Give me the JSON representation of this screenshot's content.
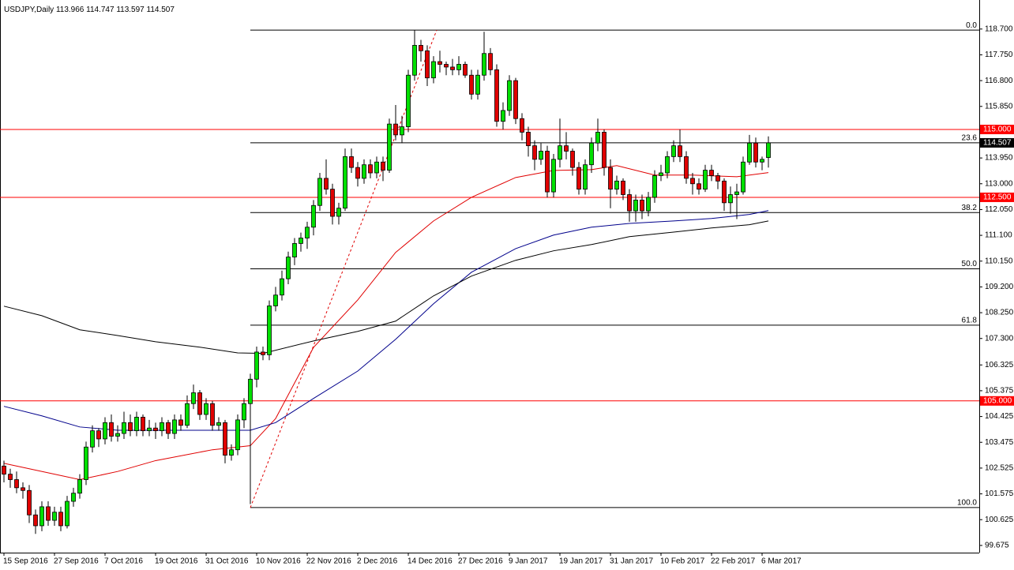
{
  "chart_data": {
    "type": "candlestick",
    "symbol": "USDJPY,Daily",
    "xlim": [
      -0.625,
      154.375
    ],
    "ylim": [
      99.41,
      119.77
    ],
    "xticks": [
      {
        "value": 0,
        "label": "15 Sep 2016"
      },
      {
        "value": 8,
        "label": "27 Sep 2016"
      },
      {
        "value": 16,
        "label": "7 Oct 2016"
      },
      {
        "value": 24,
        "label": "19 Oct 2016"
      },
      {
        "value": 32,
        "label": "31 Oct 2016"
      },
      {
        "value": 40,
        "label": "10 Nov 2016"
      },
      {
        "value": 48,
        "label": "22 Nov 2016"
      },
      {
        "value": 56,
        "label": "2 Dec 2016"
      },
      {
        "value": 64,
        "label": "14 Dec 2016"
      },
      {
        "value": 72,
        "label": "27 Dec 2016"
      },
      {
        "value": 80,
        "label": "9 Jan 2017"
      },
      {
        "value": 88,
        "label": "19 Jan 2017"
      },
      {
        "value": 96,
        "label": "31 Jan 2017"
      },
      {
        "value": 104,
        "label": "10 Feb 2017"
      },
      {
        "value": 112,
        "label": "22 Feb 2017"
      },
      {
        "value": 120,
        "label": "6 Mar 2017"
      }
    ],
    "yticks": [
      {
        "value": 118.7,
        "label": "118.700"
      },
      {
        "value": 117.75,
        "label": "117.750"
      },
      {
        "value": 116.8,
        "label": "116.800"
      },
      {
        "value": 115.85,
        "label": "115.850"
      },
      {
        "value": 113.95,
        "label": "113.950"
      },
      {
        "value": 113,
        "label": "113.000"
      },
      {
        "value": 112.05,
        "label": "112.050"
      },
      {
        "value": 111.1,
        "label": "111.100"
      },
      {
        "value": 110.15,
        "label": "110.150"
      },
      {
        "value": 109.2,
        "label": "109.200"
      },
      {
        "value": 108.25,
        "label": "108.250"
      },
      {
        "value": 107.3,
        "label": "107.300"
      },
      {
        "value": 106.325,
        "label": "106.325"
      },
      {
        "value": 105.375,
        "label": "105.375"
      },
      {
        "value": 104.425,
        "label": "104.425"
      },
      {
        "value": 103.475,
        "label": "103.475"
      },
      {
        "value": 102.525,
        "label": "102.525"
      },
      {
        "value": 101.575,
        "label": "101.575"
      },
      {
        "value": 100.625,
        "label": "100.625"
      },
      {
        "value": 99.675,
        "label": "99.675"
      }
    ],
    "levels": [
      {
        "value": 115,
        "label": "115.000"
      },
      {
        "value": 112.5,
        "label": "112.500"
      },
      {
        "value": 105,
        "label": "105.000"
      }
    ],
    "level_color": "#ff0000",
    "last_price": 114.507,
    "fib": {
      "x": 39,
      "trend_x": [
        39,
        68.5
      ],
      "trend_y": [
        101.07,
        118.66
      ],
      "lines": [
        {
          "value": 118.66,
          "label": "0.0"
        },
        {
          "value": 114.51,
          "label": "23.6"
        },
        {
          "value": 111.94,
          "label": "38.2"
        },
        {
          "value": 109.865,
          "label": "50.0"
        },
        {
          "value": 107.79,
          "label": "61.8"
        },
        {
          "value": 101.07,
          "label": "100.0"
        }
      ]
    },
    "up_color": "#00e000",
    "down_color": "#e00000",
    "candles": [
      [
        102.6,
        102.8,
        102.0,
        102.3
      ],
      [
        102.3,
        102.5,
        101.8,
        102.1
      ],
      [
        102.1,
        102.4,
        101.6,
        101.8
      ],
      [
        101.8,
        102.0,
        101.4,
        101.7
      ],
      [
        101.7,
        101.9,
        100.5,
        100.8
      ],
      [
        100.8,
        101.0,
        100.1,
        100.4
      ],
      [
        100.4,
        101.3,
        100.2,
        101.1
      ],
      [
        101.1,
        101.3,
        100.4,
        100.6
      ],
      [
        100.6,
        101.1,
        100.4,
        100.9
      ],
      [
        100.9,
        101.1,
        100.2,
        100.4
      ],
      [
        100.4,
        101.5,
        100.3,
        101.3
      ],
      [
        101.3,
        101.8,
        101.1,
        101.6
      ],
      [
        101.6,
        102.3,
        101.4,
        102.1
      ],
      [
        102.1,
        103.5,
        101.9,
        103.3
      ],
      [
        103.3,
        104.1,
        103.1,
        103.9
      ],
      [
        103.9,
        104.0,
        103.3,
        103.6
      ],
      [
        103.6,
        104.4,
        103.4,
        104.2
      ],
      [
        104.2,
        104.5,
        103.5,
        103.7
      ],
      [
        103.7,
        104.1,
        103.5,
        103.8
      ],
      [
        103.8,
        104.6,
        103.6,
        104.2
      ],
      [
        104.2,
        104.5,
        103.7,
        103.9
      ],
      [
        103.9,
        104.6,
        103.7,
        104.4
      ],
      [
        104.4,
        104.5,
        103.7,
        103.9
      ],
      [
        103.9,
        104.3,
        103.7,
        104.0
      ],
      [
        104.0,
        104.2,
        103.6,
        103.9
      ],
      [
        103.9,
        104.4,
        103.7,
        104.2
      ],
      [
        104.2,
        104.3,
        103.6,
        103.8
      ],
      [
        103.8,
        104.5,
        103.6,
        104.3
      ],
      [
        104.3,
        104.5,
        103.9,
        104.1
      ],
      [
        104.1,
        105.2,
        104.0,
        104.9
      ],
      [
        104.9,
        105.6,
        104.7,
        105.3
      ],
      [
        105.3,
        105.4,
        104.3,
        104.5
      ],
      [
        104.5,
        105.1,
        104.3,
        104.9
      ],
      [
        104.9,
        105.0,
        103.9,
        104.1
      ],
      [
        104.1,
        104.4,
        103.9,
        104.2
      ],
      [
        104.2,
        104.3,
        102.7,
        103.0
      ],
      [
        103.0,
        103.4,
        102.8,
        103.2
      ],
      [
        103.2,
        104.5,
        103.0,
        104.3
      ],
      [
        104.3,
        105.1,
        104.0,
        104.9
      ],
      [
        104.9,
        106.0,
        101.2,
        105.8
      ],
      [
        105.8,
        107.0,
        105.5,
        106.8
      ],
      [
        106.8,
        107.0,
        106.5,
        106.7
      ],
      [
        106.7,
        108.7,
        106.5,
        108.5
      ],
      [
        108.5,
        109.2,
        108.3,
        108.9
      ],
      [
        108.9,
        109.8,
        108.7,
        109.5
      ],
      [
        109.5,
        110.5,
        109.3,
        110.3
      ],
      [
        110.3,
        111.0,
        110.0,
        110.8
      ],
      [
        110.8,
        111.2,
        110.5,
        111.0
      ],
      [
        111.0,
        111.6,
        110.6,
        111.4
      ],
      [
        111.4,
        112.4,
        111.1,
        112.2
      ],
      [
        112.2,
        113.4,
        112.0,
        113.2
      ],
      [
        113.2,
        113.9,
        112.6,
        112.8
      ],
      [
        112.8,
        113.0,
        111.5,
        111.8
      ],
      [
        111.8,
        112.3,
        111.5,
        112.1
      ],
      [
        112.1,
        114.3,
        112.0,
        114.0
      ],
      [
        114.0,
        114.3,
        113.4,
        113.6
      ],
      [
        113.6,
        113.8,
        112.9,
        113.2
      ],
      [
        113.2,
        113.9,
        113.0,
        113.7
      ],
      [
        113.7,
        113.9,
        113.2,
        113.4
      ],
      [
        113.4,
        114.0,
        113.2,
        113.8
      ],
      [
        113.8,
        114.0,
        113.1,
        113.5
      ],
      [
        113.5,
        115.4,
        113.4,
        115.2
      ],
      [
        115.2,
        115.9,
        114.6,
        114.8
      ],
      [
        114.8,
        115.5,
        114.5,
        115.1
      ],
      [
        115.1,
        117.2,
        114.9,
        117.0
      ],
      [
        117.0,
        118.66,
        116.8,
        118.1
      ],
      [
        118.1,
        118.3,
        117.5,
        117.9
      ],
      [
        117.9,
        118.1,
        116.6,
        116.9
      ],
      [
        116.9,
        117.7,
        116.7,
        117.5
      ],
      [
        117.5,
        117.9,
        117.1,
        117.4
      ],
      [
        117.4,
        117.5,
        117.0,
        117.3
      ],
      [
        117.3,
        117.6,
        117.0,
        117.2
      ],
      [
        117.2,
        117.7,
        117.0,
        117.4
      ],
      [
        117.4,
        117.5,
        116.9,
        117.0
      ],
      [
        117.0,
        117.2,
        116.1,
        116.3
      ],
      [
        116.3,
        117.2,
        116.1,
        117.0
      ],
      [
        117.0,
        118.6,
        116.8,
        117.8
      ],
      [
        117.8,
        118.0,
        117.0,
        117.2
      ],
      [
        117.2,
        117.4,
        115.1,
        115.3
      ],
      [
        115.3,
        116.0,
        115.0,
        115.7
      ],
      [
        115.7,
        117.0,
        115.5,
        116.8
      ],
      [
        116.8,
        116.9,
        115.2,
        115.4
      ],
      [
        115.4,
        115.6,
        114.6,
        114.9
      ],
      [
        114.9,
        115.1,
        114.0,
        114.4
      ],
      [
        114.4,
        114.6,
        113.5,
        113.9
      ],
      [
        113.9,
        114.5,
        113.7,
        114.2
      ],
      [
        114.2,
        114.4,
        112.5,
        112.7
      ],
      [
        112.7,
        114.1,
        112.5,
        113.9
      ],
      [
        113.9,
        115.4,
        113.6,
        114.4
      ],
      [
        114.4,
        114.9,
        113.9,
        114.2
      ],
      [
        114.2,
        114.3,
        113.3,
        113.6
      ],
      [
        113.6,
        113.8,
        112.6,
        112.8
      ],
      [
        112.8,
        113.9,
        112.6,
        113.7
      ],
      [
        113.7,
        114.7,
        113.4,
        114.5
      ],
      [
        114.5,
        115.4,
        114.2,
        114.9
      ],
      [
        114.9,
        115.0,
        113.3,
        113.6
      ],
      [
        113.6,
        113.9,
        112.1,
        112.8
      ],
      [
        112.8,
        113.3,
        112.6,
        113.1
      ],
      [
        113.1,
        113.2,
        112.4,
        112.6
      ],
      [
        112.6,
        112.8,
        111.6,
        112.0
      ],
      [
        112.0,
        112.6,
        111.6,
        112.4
      ],
      [
        112.4,
        112.6,
        111.7,
        112.0
      ],
      [
        112.0,
        112.7,
        111.8,
        112.5
      ],
      [
        112.5,
        113.5,
        112.3,
        113.3
      ],
      [
        113.3,
        113.7,
        113.1,
        113.4
      ],
      [
        113.4,
        114.2,
        113.2,
        114.0
      ],
      [
        114.0,
        114.6,
        113.8,
        114.4
      ],
      [
        114.4,
        115.0,
        113.8,
        114.0
      ],
      [
        114.0,
        114.2,
        113.0,
        113.2
      ],
      [
        113.2,
        113.4,
        112.6,
        113.0
      ],
      [
        113.0,
        113.2,
        112.6,
        112.8
      ],
      [
        112.8,
        113.7,
        112.7,
        113.5
      ],
      [
        113.5,
        113.7,
        113.1,
        113.3
      ],
      [
        113.3,
        113.4,
        112.8,
        113.1
      ],
      [
        113.1,
        113.2,
        112.0,
        112.3
      ],
      [
        112.3,
        112.9,
        111.9,
        112.6
      ],
      [
        112.6,
        113.0,
        111.7,
        112.7
      ],
      [
        112.7,
        114.0,
        112.6,
        113.8
      ],
      [
        113.8,
        114.8,
        113.7,
        114.5
      ],
      [
        114.5,
        114.7,
        113.6,
        113.8
      ],
      [
        113.8,
        114.0,
        113.5,
        113.9
      ],
      [
        113.966,
        114.747,
        113.597,
        114.507
      ]
    ],
    "series": [
      {
        "color": "#e00000",
        "x": [
          0,
          12,
          18,
          24,
          33,
          39,
          43,
          49,
          56,
          62,
          68,
          74,
          81,
          87,
          93,
          97,
          103,
          109,
          116,
          121
        ],
        "values": [
          102.7,
          102.1,
          102.4,
          102.8,
          103.2,
          103.35,
          104.35,
          106.97,
          108.72,
          110.47,
          111.63,
          112.5,
          113.23,
          113.49,
          113.52,
          113.67,
          113.32,
          113.32,
          113.26,
          113.41
        ]
      },
      {
        "color": "#00008b",
        "x": [
          0,
          6,
          12,
          18,
          24,
          31,
          39,
          43,
          49,
          56,
          62,
          68,
          74,
          81,
          87,
          93,
          99,
          106,
          112,
          118,
          121
        ],
        "values": [
          104.8,
          104.45,
          104.04,
          103.92,
          103.92,
          103.92,
          103.92,
          104.2,
          105.09,
          106.1,
          107.27,
          108.58,
          109.74,
          110.61,
          111.11,
          111.4,
          111.54,
          111.63,
          111.72,
          111.87,
          112.01
        ]
      },
      {
        "color": "#000000",
        "x": [
          0,
          6,
          12,
          18,
          24,
          31,
          37,
          41,
          49,
          56,
          62,
          68,
          74,
          81,
          87,
          93,
          99,
          106,
          112,
          118,
          121
        ],
        "values": [
          108.49,
          108.14,
          107.62,
          107.41,
          107.18,
          106.98,
          106.77,
          106.75,
          107.21,
          107.56,
          107.94,
          108.87,
          109.6,
          110.18,
          110.53,
          110.76,
          111.05,
          111.22,
          111.37,
          111.49,
          111.63
        ]
      }
    ]
  }
}
